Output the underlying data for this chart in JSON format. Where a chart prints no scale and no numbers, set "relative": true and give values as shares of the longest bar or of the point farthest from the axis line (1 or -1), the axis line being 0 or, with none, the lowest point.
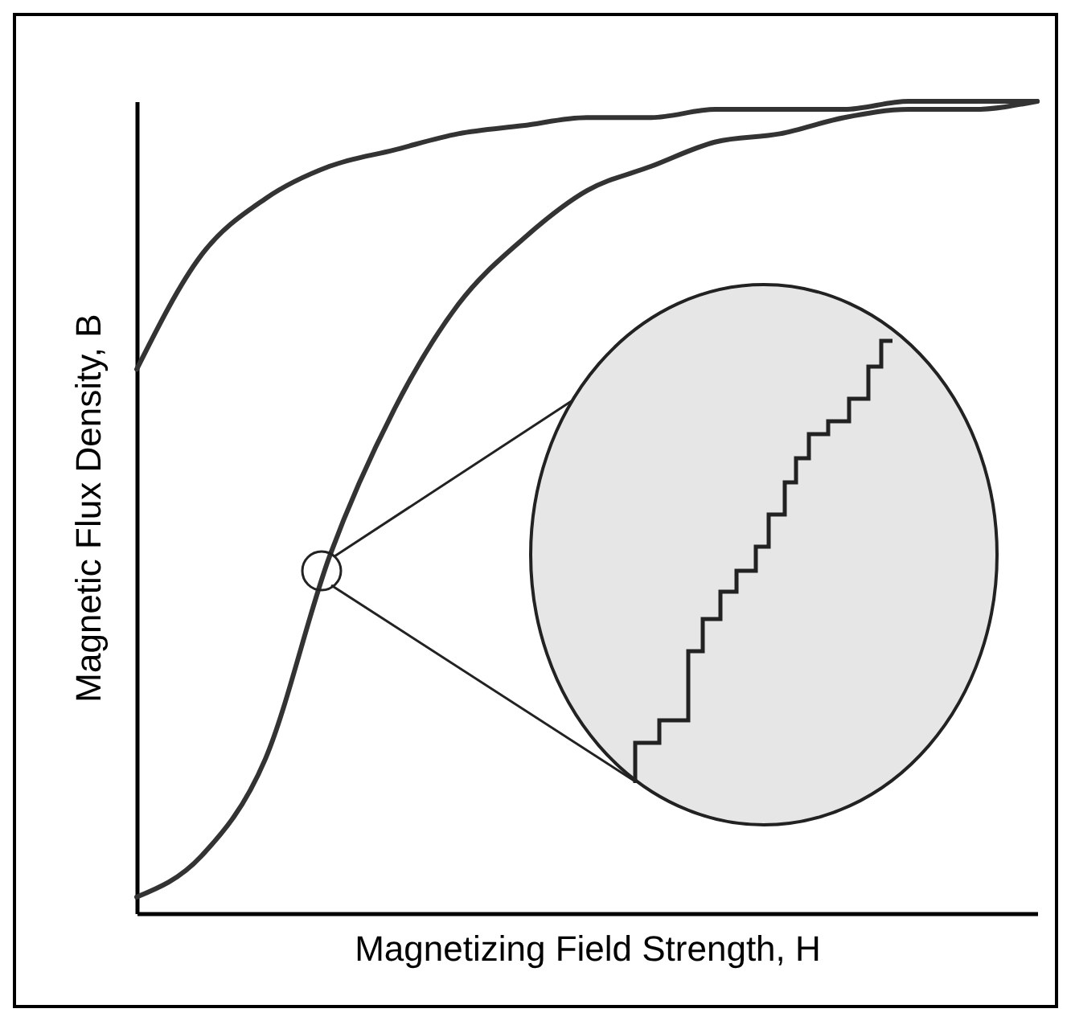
{
  "chart_data": {
    "type": "line",
    "relative": true,
    "xlabel": "Magnetizing Field Strength, H",
    "ylabel": "Magnetic Flux Density, B",
    "categories": [
      null,
      null,
      null,
      null,
      null,
      null,
      null,
      null,
      null,
      null,
      null,
      null,
      null,
      null,
      null
    ],
    "series": [
      {
        "color": "#333333",
        "values": [
          0.67,
          0.81,
          0.88,
          0.92,
          0.94,
          0.96,
          0.97,
          0.98,
          0.98,
          0.99,
          0.99,
          0.99,
          1.0,
          1.0,
          1.0
        ]
      },
      {
        "color": "#333333",
        "values": [
          0.02,
          0.07,
          0.19,
          0.44,
          0.62,
          0.75,
          0.83,
          0.89,
          0.92,
          0.95,
          0.96,
          0.98,
          0.99,
          0.99,
          1.0
        ]
      }
    ],
    "legend": false,
    "grid": false,
    "marker": "none",
    "line_style": "solid"
  }
}
